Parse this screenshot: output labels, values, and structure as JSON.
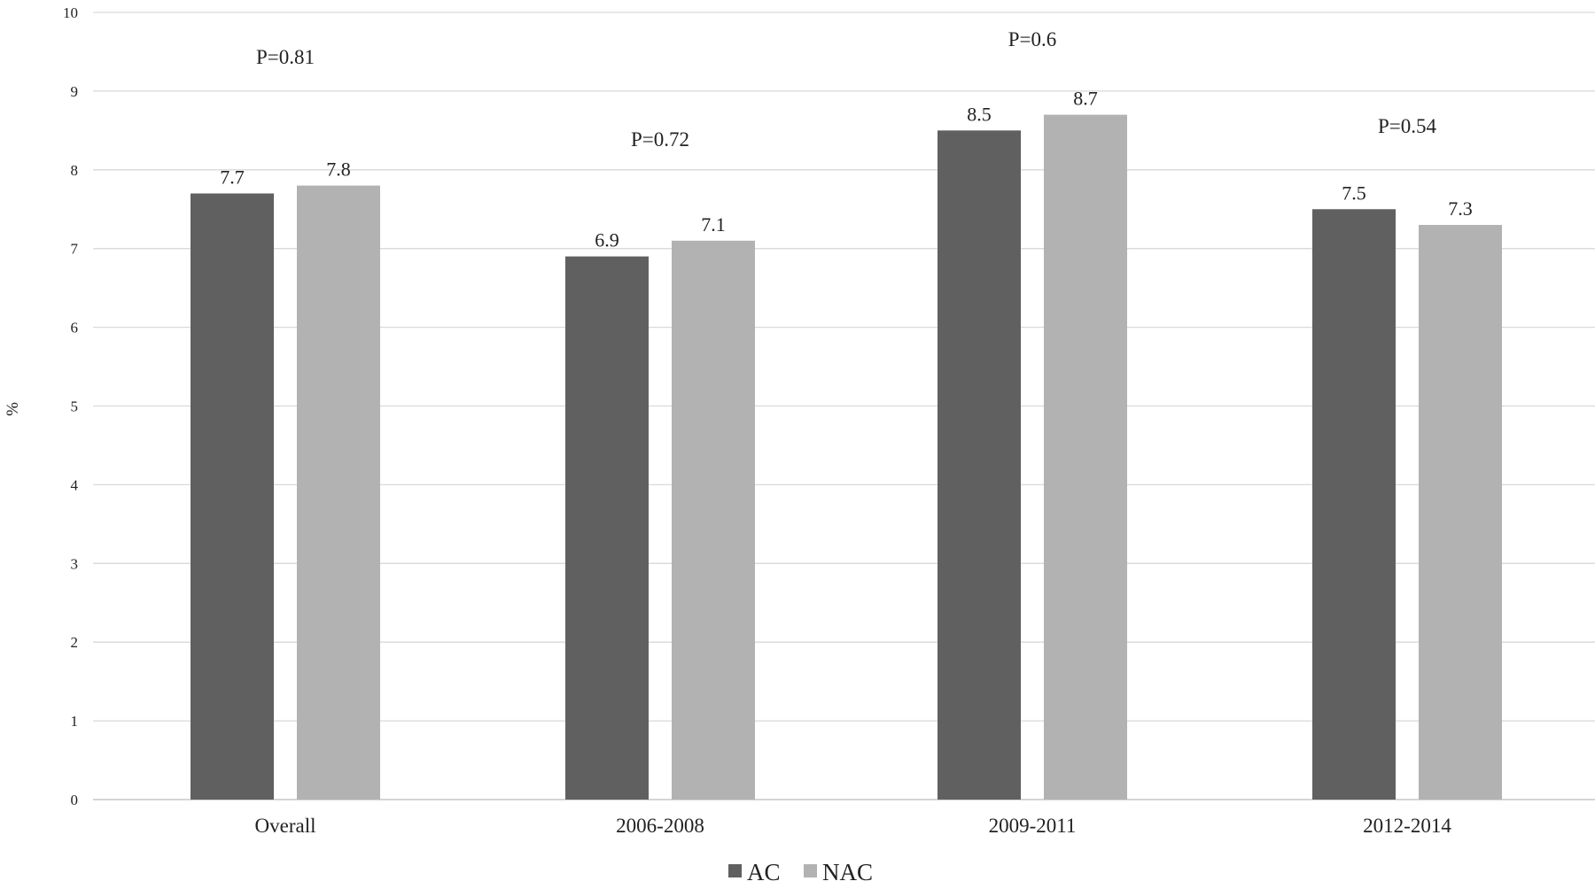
{
  "chart_data": {
    "type": "bar",
    "title": "",
    "xlabel": "",
    "ylabel": "%",
    "ylim": [
      0,
      10
    ],
    "yticks": [
      "0",
      "1",
      "2",
      "3",
      "4",
      "5",
      "6",
      "7",
      "8",
      "9",
      "10"
    ],
    "grid": true,
    "legend_position": "bottom-center",
    "categories": [
      "Overall",
      "2006-2008",
      "2009-2011",
      "2012-2014"
    ],
    "series": [
      {
        "name": "AC",
        "color": "#606060",
        "values": [
          7.7,
          6.9,
          8.5,
          7.5
        ],
        "labels": [
          "7.7",
          "6.9",
          "8.5",
          "7.5"
        ]
      },
      {
        "name": "NAC",
        "color": "#b2b2b2",
        "values": [
          7.8,
          7.1,
          8.7,
          7.3
        ],
        "labels": [
          "7.8",
          "7.1",
          "8.7",
          "7.3"
        ]
      }
    ],
    "annotations": [
      {
        "category": "Overall",
        "text": "P=0.81",
        "y": 9.35
      },
      {
        "category": "2006-2008",
        "text": "P=0.72",
        "y": 8.3
      },
      {
        "category": "2009-2011",
        "text": "P=0.6",
        "y": 9.57
      },
      {
        "category": "2012-2014",
        "text": "P=0.54",
        "y": 8.47
      }
    ]
  }
}
